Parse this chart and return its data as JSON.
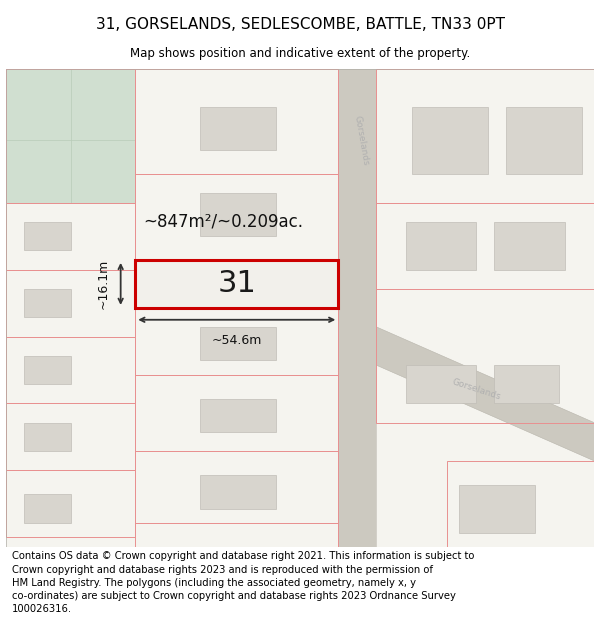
{
  "title": "31, GORSELANDS, SEDLESCOMBE, BATTLE, TN33 0PT",
  "subtitle": "Map shows position and indicative extent of the property.",
  "footer": "Contains OS data © Crown copyright and database right 2021. This information is subject to Crown copyright and database rights 2023 and is reproduced with the permission of HM Land Registry. The polygons (including the associated geometry, namely x, y co-ordinates) are subject to Crown copyright and database rights 2023 Ordnance Survey 100026316.",
  "area_label": "~847m²/~0.209ac.",
  "width_label": "~54.6m",
  "height_label": "~16.1m",
  "plot_number": "31",
  "map_bg": "#f5f4ef",
  "plot_line_color": "#cc0000",
  "boundary_color": "#e89090",
  "green_area_color": "#d0dfd0",
  "road_color": "#ccc9c0",
  "road_label_color": "#b0b0b0",
  "building_color": "#d8d5ce",
  "building_edge_color": "#c0bdb6",
  "title_fontsize": 11,
  "subtitle_fontsize": 8.5,
  "footer_fontsize": 7.2,
  "annotation_fontsize": 9,
  "area_fontsize": 12,
  "plot_num_fontsize": 22
}
